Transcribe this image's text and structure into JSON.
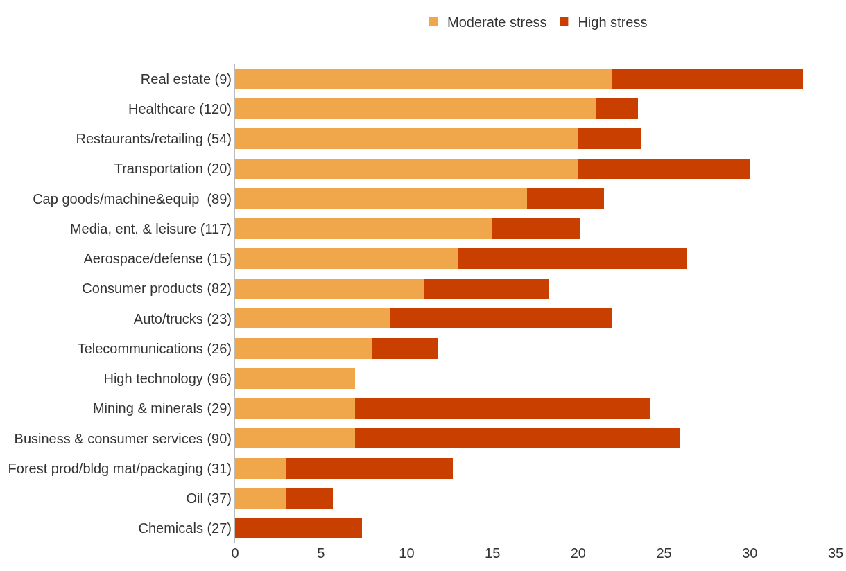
{
  "chart_data": {
    "type": "bar",
    "orientation": "horizontal",
    "stacked": true,
    "legend": "top",
    "grid": false,
    "categories": [
      "Real estate (9)",
      "Healthcare (120)",
      "Restaurants/retailing (54)",
      "Transportation (20)",
      "Cap goods/machine&equip  (89)",
      "Media, ent. & leisure (117)",
      "Aerospace/defense (15)",
      "Consumer products (82)",
      "Auto/trucks (23)",
      "Telecommunications (26)",
      "High technology (96)",
      "Mining & minerals (29)",
      "Business & consumer services (90)",
      "Forest prod/bldg mat/packaging (31)",
      "Oil (37)",
      "Chemicals (27)"
    ],
    "series": [
      {
        "name": "Moderate stress",
        "color": "#f0a64a",
        "values": [
          22,
          21,
          20,
          20,
          17,
          15,
          13,
          11,
          9,
          8,
          7,
          7,
          7,
          3,
          3,
          0
        ]
      },
      {
        "name": "High stress",
        "color": "#c93f00",
        "values": [
          11.1,
          2.5,
          3.7,
          10,
          4.5,
          5.1,
          13.3,
          7.3,
          13,
          3.8,
          0,
          17.2,
          18.9,
          9.7,
          2.7,
          7.4
        ]
      }
    ],
    "xlim": [
      0,
      35
    ],
    "xticks": [
      0,
      5,
      10,
      15,
      20,
      25,
      30,
      35
    ]
  }
}
